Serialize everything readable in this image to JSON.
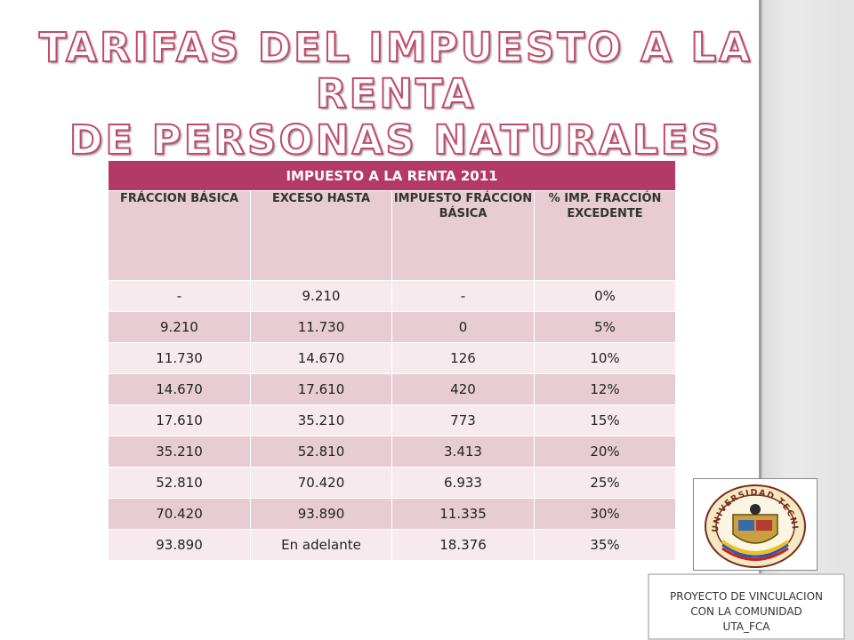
{
  "slide": {
    "title_line1": "TARIFAS DEL IMPUESTO A LA RENTA",
    "title_line2": "DE PERSONAS NATURALES"
  },
  "table": {
    "caption": "IMPUESTO A LA RENTA 2011",
    "headers": [
      "FRÁCCION BÁSICA",
      "EXCESO HASTA",
      "IMPUESTO FRÁCCION BÁSICA",
      "% IMP. FRACCIÓN EXCEDENTE"
    ],
    "rows": [
      [
        "-",
        "9.210",
        "-",
        "0%"
      ],
      [
        "9.210",
        "11.730",
        "0",
        "5%"
      ],
      [
        "11.730",
        "14.670",
        "126",
        "10%"
      ],
      [
        "14.670",
        "17.610",
        "420",
        "12%"
      ],
      [
        "17.610",
        "35.210",
        "773",
        "15%"
      ],
      [
        "35.210",
        "52.810",
        "3.413",
        "20%"
      ],
      [
        "52.810",
        "70.420",
        "6.933",
        "25%"
      ],
      [
        "70.420",
        "93.890",
        "11.335",
        "30%"
      ],
      [
        "93.890",
        "En adelante",
        "18.376",
        "35%"
      ]
    ]
  },
  "seal": {
    "text": "UNIVERSIDAD TECNICA DE AMBATO"
  },
  "footer": {
    "line1": "PROYECTO DE VINCULACION",
    "line2": "CON LA COMUNIDAD",
    "line3": "UTA_FCA"
  },
  "colors": {
    "header_bar": "#b33a67",
    "row_dark": "#e8ccd4",
    "row_light": "#f6eaee",
    "title_outline": "#c24a6a"
  }
}
